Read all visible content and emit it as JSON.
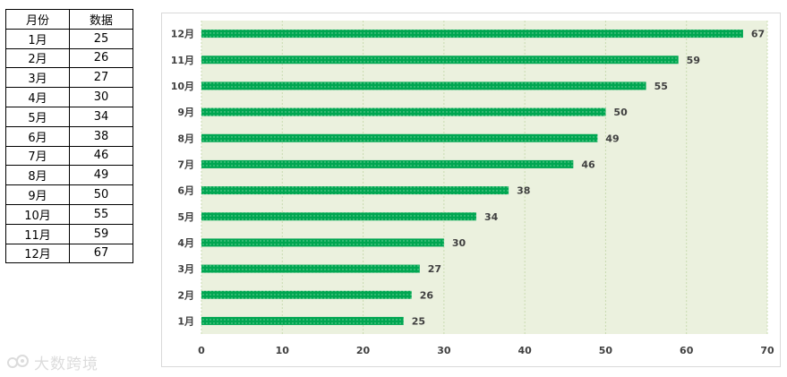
{
  "table": {
    "headers": [
      "月份",
      "数据"
    ],
    "rows": [
      [
        "1月",
        "25"
      ],
      [
        "2月",
        "26"
      ],
      [
        "3月",
        "27"
      ],
      [
        "4月",
        "30"
      ],
      [
        "5月",
        "34"
      ],
      [
        "6月",
        "38"
      ],
      [
        "7月",
        "46"
      ],
      [
        "8月",
        "49"
      ],
      [
        "9月",
        "50"
      ],
      [
        "10月",
        "55"
      ],
      [
        "11月",
        "59"
      ],
      [
        "12月",
        "67"
      ]
    ]
  },
  "chart_data": {
    "type": "bar",
    "orientation": "horizontal",
    "categories": [
      "1月",
      "2月",
      "3月",
      "4月",
      "5月",
      "6月",
      "7月",
      "8月",
      "9月",
      "10月",
      "11月",
      "12月"
    ],
    "values": [
      25,
      26,
      27,
      30,
      34,
      38,
      46,
      49,
      50,
      55,
      59,
      67
    ],
    "xlim": [
      0,
      70
    ],
    "xticks": [
      0,
      10,
      20,
      30,
      40,
      50,
      60,
      70
    ],
    "grid": "vertical dashed",
    "data_labels": true,
    "colors": {
      "bar": "#00a651",
      "plot_bg": "#ebf1de",
      "grid": "#c9dbb0"
    }
  },
  "watermark": {
    "text": "大数跨境"
  }
}
